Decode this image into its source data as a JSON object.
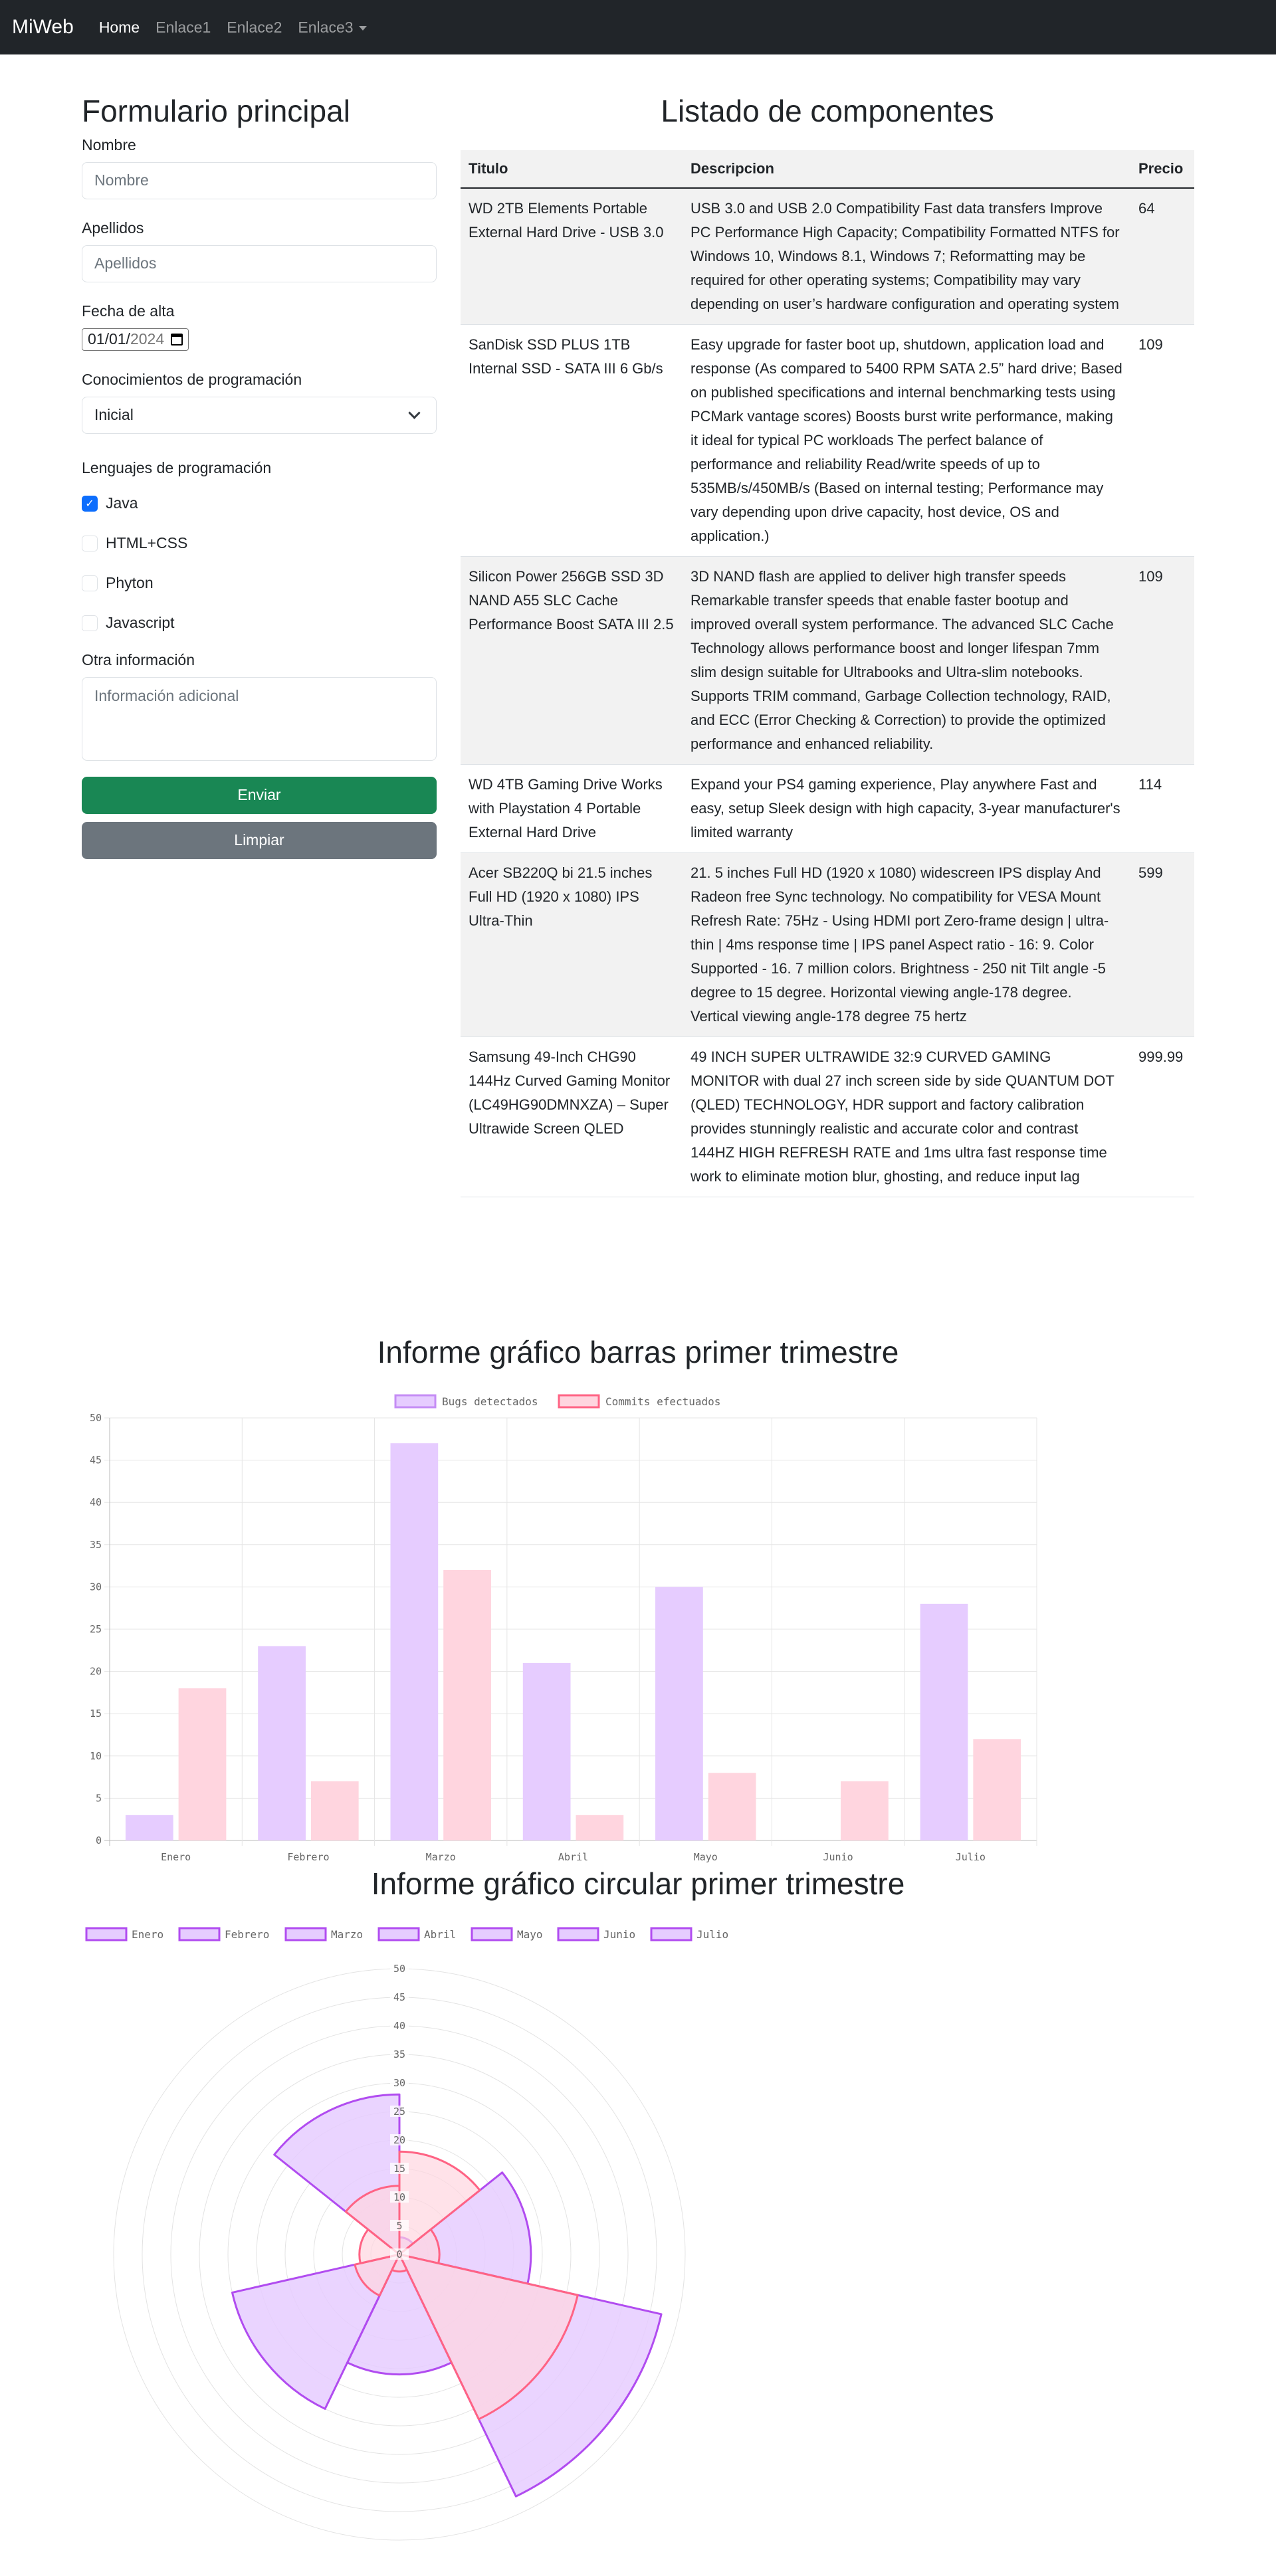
{
  "navbar": {
    "brand": "MiWeb",
    "links": [
      {
        "label": "Home"
      },
      {
        "label": "Enlace1"
      },
      {
        "label": "Enlace2"
      },
      {
        "label": "Enlace3"
      }
    ]
  },
  "form": {
    "title": "Formulario principal",
    "nombre": {
      "label": "Nombre",
      "placeholder": "Nombre"
    },
    "apellidos": {
      "label": "Apellidos",
      "placeholder": "Apellidos"
    },
    "fecha": {
      "label": "Fecha de alta",
      "value_day_month": "01/01/",
      "value_year": "2024"
    },
    "conocimientos": {
      "label": "Conocimientos de programación",
      "selected": "Inicial"
    },
    "lenguajes": {
      "label": "Lenguajes de programación",
      "options": [
        {
          "label": "Java",
          "checked": true
        },
        {
          "label": "HTML+CSS",
          "checked": false
        },
        {
          "label": "Phyton",
          "checked": false
        },
        {
          "label": "Javascript",
          "checked": false
        }
      ]
    },
    "otra": {
      "label": "Otra información",
      "placeholder": "Información adicional"
    },
    "submit_label": "Enviar",
    "reset_label": "Limpiar"
  },
  "table": {
    "title": "Listado de componentes",
    "headers": [
      "Titulo",
      "Descripcion",
      "Precio"
    ],
    "rows": [
      {
        "titulo": "WD 2TB Elements Portable External Hard Drive - USB 3.0",
        "descripcion": "USB 3.0 and USB 2.0 Compatibility Fast data transfers Improve PC Performance High Capacity; Compatibility Formatted NTFS for Windows 10, Windows 8.1, Windows 7; Reformatting may be required for other operating systems; Compatibility may vary depending on user’s hardware configuration and operating system",
        "precio": "64"
      },
      {
        "titulo": "SanDisk SSD PLUS 1TB Internal SSD - SATA III 6 Gb/s",
        "descripcion": "Easy upgrade for faster boot up, shutdown, application load and response (As compared to 5400 RPM SATA 2.5” hard drive; Based on published specifications and internal benchmarking tests using PCMark vantage scores) Boosts burst write performance, making it ideal for typical PC workloads The perfect balance of performance and reliability Read/write speeds of up to 535MB/s/450MB/s (Based on internal testing; Performance may vary depending upon drive capacity, host device, OS and application.)",
        "precio": "109"
      },
      {
        "titulo": "Silicon Power 256GB SSD 3D NAND A55 SLC Cache Performance Boost SATA III 2.5",
        "descripcion": "3D NAND flash are applied to deliver high transfer speeds Remarkable transfer speeds that enable faster bootup and improved overall system performance. The advanced SLC Cache Technology allows performance boost and longer lifespan 7mm slim design suitable for Ultrabooks and Ultra-slim notebooks. Supports TRIM command, Garbage Collection technology, RAID, and ECC (Error Checking & Correction) to provide the optimized performance and enhanced reliability.",
        "precio": "109"
      },
      {
        "titulo": "WD 4TB Gaming Drive Works with Playstation 4 Portable External Hard Drive",
        "descripcion": "Expand your PS4 gaming experience, Play anywhere Fast and easy, setup Sleek design with high capacity, 3-year manufacturer's limited warranty",
        "precio": "114"
      },
      {
        "titulo": "Acer SB220Q bi 21.5 inches Full HD (1920 x 1080) IPS Ultra-Thin",
        "descripcion": "21. 5 inches Full HD (1920 x 1080) widescreen IPS display And Radeon free Sync technology. No compatibility for VESA Mount Refresh Rate: 75Hz - Using HDMI port Zero-frame design | ultra-thin | 4ms response time | IPS panel Aspect ratio - 16: 9. Color Supported - 16. 7 million colors. Brightness - 250 nit Tilt angle -5 degree to 15 degree. Horizontal viewing angle-178 degree. Vertical viewing angle-178 degree 75 hertz",
        "precio": "599"
      },
      {
        "titulo": "Samsung 49-Inch CHG90 144Hz Curved Gaming Monitor (LC49HG90DMNXZA) – Super Ultrawide Screen QLED",
        "descripcion": "49 INCH SUPER ULTRAWIDE 32:9 CURVED GAMING MONITOR with dual 27 inch screen side by side QUANTUM DOT (QLED) TECHNOLOGY, HDR support and factory calibration provides stunningly realistic and accurate color and contrast 144HZ HIGH REFRESH RATE and 1ms ultra fast response time work to eliminate motion blur, ghosting, and reduce input lag",
        "precio": "999.99"
      }
    ]
  },
  "charts": {
    "bar_title": "Informe gráfico barras primer trimestre",
    "polar_title": "Informe gráfico circular primer trimestre"
  },
  "chart_data": [
    {
      "type": "bar",
      "title": "Informe gráfico barras primer trimestre",
      "categories": [
        "Enero",
        "Febrero",
        "Marzo",
        "Abril",
        "Mayo",
        "Junio",
        "Julio"
      ],
      "series": [
        {
          "name": "Bugs detectados",
          "values": [
            3,
            23,
            47,
            21,
            30,
            0,
            28
          ],
          "fill": "#e6ccff",
          "stroke": "#c58cf5"
        },
        {
          "name": "Commits efectuados",
          "values": [
            18,
            7,
            32,
            3,
            8,
            7,
            12
          ],
          "fill": "#ffd5df",
          "stroke": "#ff6384"
        }
      ],
      "ylim": [
        0,
        50
      ],
      "yticks": [
        0,
        5,
        10,
        15,
        20,
        25,
        30,
        35,
        40,
        45,
        50
      ],
      "grid": true,
      "legend": "top-center"
    },
    {
      "type": "polarArea",
      "title": "Informe gráfico circular primer trimestre",
      "categories": [
        "Enero",
        "Febrero",
        "Marzo",
        "Abril",
        "Mayo",
        "Junio",
        "Julio"
      ],
      "series": [
        {
          "name": "Bugs detectados",
          "values": [
            3,
            23,
            47,
            21,
            30,
            0,
            28
          ],
          "fill": "#e6ccff",
          "stroke": "#b14cf0"
        },
        {
          "name": "Commits efectuados",
          "values": [
            18,
            7,
            32,
            3,
            8,
            7,
            12
          ],
          "fill": "#ffd5df",
          "stroke": "#ff6384"
        }
      ],
      "rlim": [
        0,
        50
      ],
      "rticks": [
        0,
        5,
        10,
        15,
        20,
        25,
        30,
        35,
        40,
        45,
        50
      ],
      "legend": "top-left"
    }
  ]
}
